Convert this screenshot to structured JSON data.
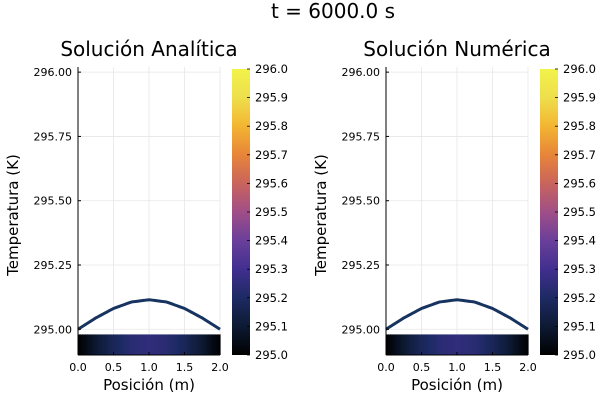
{
  "figure": {
    "suptitle": "t = 6000.0 s"
  },
  "colors": {
    "curve": "#17335f",
    "colormap": [
      "#000000",
      "#0d1a33",
      "#1d2a63",
      "#412f8f",
      "#6a3f9a",
      "#a04e87",
      "#c9645c",
      "#e78539",
      "#f3b532",
      "#eedf4c",
      "#f2f24a"
    ]
  },
  "chart_data": [
    {
      "type": "line+heatmap",
      "title": "Solución Analítica",
      "xlabel": "Posición (m)",
      "ylabel": "Temperatura (K)",
      "xlim": [
        0.0,
        2.0
      ],
      "ylim": [
        294.9,
        296.02
      ],
      "grid": true,
      "xticks": [
        "0.0",
        "0.5",
        "1.0",
        "1.5",
        "2.0"
      ],
      "xtick_values": [
        0.0,
        0.5,
        1.0,
        1.5,
        2.0
      ],
      "yticks": [
        "295.00",
        "295.25",
        "295.50",
        "295.75",
        "296.00"
      ],
      "ytick_values": [
        295.0,
        295.25,
        295.5,
        295.75,
        296.0
      ],
      "line": {
        "x": [
          0.0,
          0.25,
          0.5,
          0.75,
          1.0,
          1.25,
          1.5,
          1.75,
          2.0
        ],
        "y": [
          295.0,
          295.044,
          295.081,
          295.106,
          295.115,
          295.106,
          295.081,
          295.044,
          295.0
        ]
      },
      "heatmap": {
        "x": [
          0.0,
          0.25,
          0.5,
          0.75,
          1.0,
          1.25,
          1.5,
          1.75,
          2.0
        ],
        "values": [
          295.0,
          295.044,
          295.081,
          295.106,
          295.115,
          295.106,
          295.081,
          295.044,
          295.0
        ],
        "y_range": [
          294.9,
          294.98
        ]
      },
      "colorbar": {
        "range": [
          295.0,
          296.0
        ],
        "ticks": [
          "295.0",
          "295.1",
          "295.2",
          "295.3",
          "295.4",
          "295.5",
          "295.6",
          "295.7",
          "295.8",
          "295.9",
          "296.0"
        ]
      }
    },
    {
      "type": "line+heatmap",
      "title": "Solución Numérica",
      "xlabel": "Posición (m)",
      "ylabel": "Temperatura (K)",
      "xlim": [
        0.0,
        2.0
      ],
      "ylim": [
        294.9,
        296.02
      ],
      "grid": true,
      "xticks": [
        "0.0",
        "0.5",
        "1.0",
        "1.5",
        "2.0"
      ],
      "xtick_values": [
        0.0,
        0.5,
        1.0,
        1.5,
        2.0
      ],
      "yticks": [
        "295.00",
        "295.25",
        "295.50",
        "295.75",
        "296.00"
      ],
      "ytick_values": [
        295.0,
        295.25,
        295.5,
        295.75,
        296.0
      ],
      "line": {
        "x": [
          0.0,
          0.25,
          0.5,
          0.75,
          1.0,
          1.25,
          1.5,
          1.75,
          2.0
        ],
        "y": [
          295.0,
          295.044,
          295.081,
          295.106,
          295.115,
          295.106,
          295.081,
          295.044,
          295.0
        ]
      },
      "heatmap": {
        "x": [
          0.0,
          0.25,
          0.5,
          0.75,
          1.0,
          1.25,
          1.5,
          1.75,
          2.0
        ],
        "values": [
          295.0,
          295.044,
          295.081,
          295.106,
          295.115,
          295.106,
          295.081,
          295.044,
          295.0
        ],
        "y_range": [
          294.9,
          294.98
        ]
      },
      "colorbar": {
        "range": [
          295.0,
          296.0
        ],
        "ticks": [
          "295.0",
          "295.1",
          "295.2",
          "295.3",
          "295.4",
          "295.5",
          "295.6",
          "295.7",
          "295.8",
          "295.9",
          "296.0"
        ]
      }
    }
  ]
}
